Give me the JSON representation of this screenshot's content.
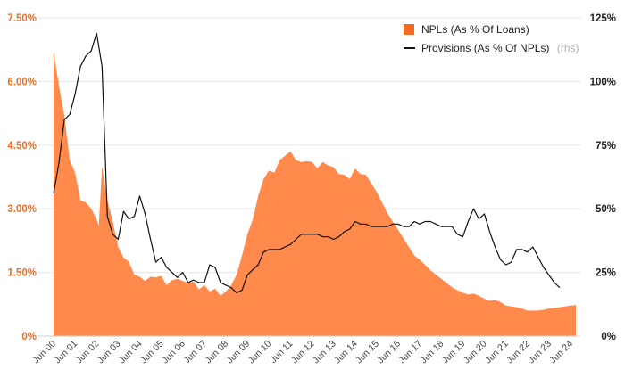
{
  "chart_data": {
    "type": "area",
    "title": "",
    "colors": {
      "area": "#FF8A4C",
      "line": "#111111",
      "left_axis": "#F26B21",
      "right_axis": "#222222",
      "grid": "#e6e6e6"
    },
    "left_axis": {
      "min": 0,
      "max": 7.5,
      "ticks": [
        0,
        1.5,
        3.0,
        4.5,
        6.0,
        7.5
      ],
      "tick_labels": [
        "0%",
        "1.50%",
        "3.00%",
        "4.50%",
        "6.00%",
        "7.50%"
      ]
    },
    "right_axis": {
      "min": 0,
      "max": 125,
      "ticks": [
        0,
        25,
        50,
        75,
        100,
        125
      ],
      "tick_labels": [
        "0%",
        "25%",
        "50%",
        "75%",
        "100%",
        "125%"
      ]
    },
    "x_axis": {
      "min": 2000.5,
      "max": 2024.75,
      "tick_values": [
        2000.5,
        2001.5,
        2002.5,
        2003.5,
        2004.5,
        2005.5,
        2006.5,
        2007.5,
        2008.5,
        2009.5,
        2010.5,
        2011.5,
        2012.5,
        2013.5,
        2014.5,
        2015.5,
        2016.5,
        2017.5,
        2018.5,
        2019.5,
        2020.5,
        2021.5,
        2022.5,
        2023.5,
        2024.5
      ],
      "tick_labels": [
        "Jun 00",
        "Jun 01",
        "Jun 02",
        "Jun 03",
        "Jun 04",
        "Jun 05",
        "Jun 06",
        "Jun 07",
        "Jun 08",
        "Jun 09",
        "Jun 10",
        "Jun 11",
        "Jun 12",
        "Jun 13",
        "Jun 14",
        "Jun 15",
        "Jun 16",
        "Jun 17",
        "Jun 18",
        "Jun 19",
        "Jun 20",
        "Jun 21",
        "Jun 22",
        "Jun 23",
        "Jun 24"
      ]
    },
    "legend": {
      "position": "top-right",
      "entries": [
        {
          "label": "NPLs (As % Of Loans)",
          "note": ""
        },
        {
          "label": "Provisions (As % Of NPLs)",
          "note": "(rhs)"
        }
      ]
    },
    "series": [
      {
        "name": "NPLs (As % Of Loans)",
        "axis": "left",
        "kind": "area",
        "points": [
          [
            2000.5,
            6.7
          ],
          [
            2000.75,
            5.9
          ],
          [
            2001.0,
            5.2
          ],
          [
            2001.25,
            4.15
          ],
          [
            2001.5,
            3.85
          ],
          [
            2001.75,
            3.2
          ],
          [
            2002.0,
            3.15
          ],
          [
            2002.25,
            3.0
          ],
          [
            2002.5,
            2.75
          ],
          [
            2002.6,
            2.6
          ],
          [
            2002.75,
            4.0
          ],
          [
            2003.0,
            3.2
          ],
          [
            2003.25,
            2.7
          ],
          [
            2003.5,
            2.1
          ],
          [
            2003.75,
            1.85
          ],
          [
            2004.0,
            1.75
          ],
          [
            2004.25,
            1.45
          ],
          [
            2004.5,
            1.4
          ],
          [
            2004.75,
            1.3
          ],
          [
            2005.0,
            1.4
          ],
          [
            2005.25,
            1.38
          ],
          [
            2005.5,
            1.42
          ],
          [
            2005.75,
            1.2
          ],
          [
            2006.0,
            1.32
          ],
          [
            2006.25,
            1.35
          ],
          [
            2006.5,
            1.3
          ],
          [
            2006.75,
            1.25
          ],
          [
            2007.0,
            1.28
          ],
          [
            2007.25,
            1.1
          ],
          [
            2007.5,
            1.2
          ],
          [
            2007.75,
            1.05
          ],
          [
            2008.0,
            1.12
          ],
          [
            2008.25,
            0.95
          ],
          [
            2008.5,
            1.05
          ],
          [
            2008.75,
            1.2
          ],
          [
            2009.0,
            1.45
          ],
          [
            2009.25,
            1.9
          ],
          [
            2009.5,
            2.4
          ],
          [
            2009.75,
            2.75
          ],
          [
            2010.0,
            3.3
          ],
          [
            2010.25,
            3.7
          ],
          [
            2010.5,
            3.9
          ],
          [
            2010.75,
            3.85
          ],
          [
            2011.0,
            4.15
          ],
          [
            2011.25,
            4.25
          ],
          [
            2011.5,
            4.35
          ],
          [
            2011.75,
            4.15
          ],
          [
            2012.0,
            4.1
          ],
          [
            2012.25,
            4.12
          ],
          [
            2012.5,
            4.1
          ],
          [
            2012.75,
            3.95
          ],
          [
            2013.0,
            4.1
          ],
          [
            2013.25,
            4.02
          ],
          [
            2013.5,
            3.98
          ],
          [
            2013.75,
            3.82
          ],
          [
            2014.0,
            3.8
          ],
          [
            2014.25,
            3.7
          ],
          [
            2014.5,
            3.95
          ],
          [
            2014.75,
            3.82
          ],
          [
            2015.0,
            3.8
          ],
          [
            2015.25,
            3.6
          ],
          [
            2015.5,
            3.4
          ],
          [
            2015.75,
            3.15
          ],
          [
            2016.0,
            2.9
          ],
          [
            2016.25,
            2.7
          ],
          [
            2016.5,
            2.5
          ],
          [
            2016.75,
            2.3
          ],
          [
            2017.0,
            2.1
          ],
          [
            2017.25,
            1.9
          ],
          [
            2017.5,
            1.8
          ],
          [
            2017.75,
            1.68
          ],
          [
            2018.0,
            1.55
          ],
          [
            2018.25,
            1.45
          ],
          [
            2018.5,
            1.35
          ],
          [
            2018.75,
            1.25
          ],
          [
            2019.0,
            1.15
          ],
          [
            2019.25,
            1.08
          ],
          [
            2019.5,
            1.02
          ],
          [
            2019.75,
            0.98
          ],
          [
            2020.0,
            1.0
          ],
          [
            2020.25,
            0.95
          ],
          [
            2020.5,
            0.88
          ],
          [
            2020.75,
            0.83
          ],
          [
            2021.0,
            0.85
          ],
          [
            2021.25,
            0.8
          ],
          [
            2021.5,
            0.72
          ],
          [
            2021.75,
            0.7
          ],
          [
            2022.0,
            0.68
          ],
          [
            2022.25,
            0.65
          ],
          [
            2022.5,
            0.6
          ],
          [
            2022.75,
            0.6
          ],
          [
            2023.0,
            0.6
          ],
          [
            2023.25,
            0.62
          ],
          [
            2023.5,
            0.65
          ],
          [
            2023.75,
            0.67
          ],
          [
            2024.0,
            0.68
          ],
          [
            2024.25,
            0.7
          ],
          [
            2024.5,
            0.72
          ],
          [
            2024.75,
            0.73
          ]
        ]
      },
      {
        "name": "Provisions (As % Of NPLs)",
        "axis": "right",
        "kind": "line",
        "points": [
          [
            2000.5,
            56
          ],
          [
            2000.75,
            68
          ],
          [
            2001.0,
            85
          ],
          [
            2001.25,
            87
          ],
          [
            2001.5,
            95
          ],
          [
            2001.75,
            106
          ],
          [
            2002.0,
            110
          ],
          [
            2002.25,
            112
          ],
          [
            2002.5,
            119
          ],
          [
            2002.75,
            106
          ],
          [
            2003.0,
            47
          ],
          [
            2003.25,
            40
          ],
          [
            2003.5,
            38
          ],
          [
            2003.75,
            49
          ],
          [
            2004.0,
            46
          ],
          [
            2004.25,
            47
          ],
          [
            2004.5,
            55
          ],
          [
            2004.75,
            48
          ],
          [
            2005.0,
            38
          ],
          [
            2005.25,
            29
          ],
          [
            2005.5,
            31
          ],
          [
            2005.75,
            27
          ],
          [
            2006.0,
            25
          ],
          [
            2006.25,
            23
          ],
          [
            2006.5,
            25
          ],
          [
            2006.75,
            21
          ],
          [
            2007.0,
            22
          ],
          [
            2007.25,
            21
          ],
          [
            2007.5,
            21
          ],
          [
            2007.75,
            28
          ],
          [
            2008.0,
            27
          ],
          [
            2008.25,
            21
          ],
          [
            2008.5,
            20
          ],
          [
            2008.75,
            19
          ],
          [
            2009.0,
            17
          ],
          [
            2009.25,
            18
          ],
          [
            2009.5,
            24
          ],
          [
            2009.75,
            26
          ],
          [
            2010.0,
            28
          ],
          [
            2010.25,
            33
          ],
          [
            2010.5,
            34
          ],
          [
            2010.75,
            34
          ],
          [
            2011.0,
            34
          ],
          [
            2011.25,
            35
          ],
          [
            2011.5,
            36
          ],
          [
            2011.75,
            38
          ],
          [
            2012.0,
            40
          ],
          [
            2012.25,
            40
          ],
          [
            2012.5,
            40
          ],
          [
            2012.75,
            40
          ],
          [
            2013.0,
            39
          ],
          [
            2013.25,
            39
          ],
          [
            2013.5,
            38
          ],
          [
            2013.75,
            39
          ],
          [
            2014.0,
            41
          ],
          [
            2014.25,
            42
          ],
          [
            2014.5,
            45
          ],
          [
            2014.75,
            44
          ],
          [
            2015.0,
            44
          ],
          [
            2015.25,
            43
          ],
          [
            2015.5,
            43
          ],
          [
            2015.75,
            43
          ],
          [
            2016.0,
            43
          ],
          [
            2016.25,
            44
          ],
          [
            2016.5,
            44
          ],
          [
            2016.75,
            43
          ],
          [
            2017.0,
            43
          ],
          [
            2017.25,
            45
          ],
          [
            2017.5,
            44
          ],
          [
            2017.75,
            45
          ],
          [
            2018.0,
            45
          ],
          [
            2018.25,
            44
          ],
          [
            2018.5,
            43
          ],
          [
            2018.75,
            43
          ],
          [
            2019.0,
            43
          ],
          [
            2019.25,
            40
          ],
          [
            2019.5,
            39
          ],
          [
            2019.75,
            45
          ],
          [
            2020.0,
            50
          ],
          [
            2020.25,
            46
          ],
          [
            2020.5,
            48
          ],
          [
            2020.75,
            41
          ],
          [
            2021.0,
            35
          ],
          [
            2021.25,
            30
          ],
          [
            2021.5,
            28
          ],
          [
            2021.75,
            29
          ],
          [
            2022.0,
            34
          ],
          [
            2022.25,
            34
          ],
          [
            2022.5,
            33
          ],
          [
            2022.75,
            35
          ],
          [
            2023.0,
            31
          ],
          [
            2023.25,
            27
          ],
          [
            2023.5,
            24
          ],
          [
            2023.75,
            21
          ],
          [
            2024.0,
            19
          ]
        ]
      }
    ]
  }
}
